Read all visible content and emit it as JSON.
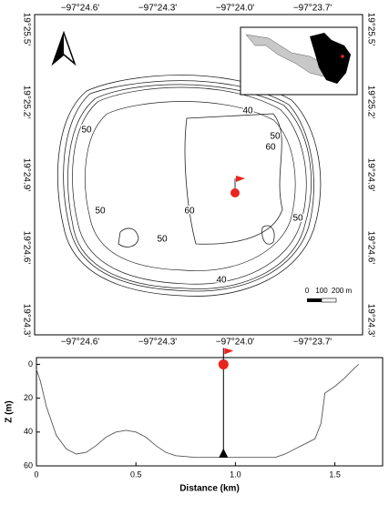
{
  "map": {
    "lon_ticks": [
      "−97°24.6'",
      "−97°24.3'",
      "−97°24.0'",
      "−97°23.7'"
    ],
    "lat_ticks": [
      "19°25.5'",
      "19°25.2'",
      "19°24.9'",
      "19°24.6'",
      "19°24.3'"
    ],
    "contour_labels": [
      "40",
      "50",
      "50",
      "60",
      "50",
      "60",
      "50",
      "50",
      "40"
    ],
    "scale_bar": [
      "0",
      "100",
      "200 m"
    ]
  },
  "chart_data": {
    "type": "line",
    "ylabel": "Z (m)",
    "xlabel": "Distance (km)",
    "x": [
      0,
      0.02,
      0.05,
      0.1,
      0.15,
      0.2,
      0.25,
      0.3,
      0.35,
      0.4,
      0.45,
      0.5,
      0.55,
      0.6,
      0.65,
      0.7,
      0.8,
      0.94,
      1.0,
      1.1,
      1.2,
      1.25,
      1.3,
      1.35,
      1.4,
      1.43,
      1.45,
      1.5,
      1.55,
      1.6,
      1.62
    ],
    "series": [
      {
        "color": "#555555",
        "values": [
          3,
          10,
          25,
          42,
          50,
          53,
          52,
          48,
          43,
          40,
          39,
          40,
          43,
          48,
          52,
          54,
          55,
          55,
          55,
          55,
          55,
          53,
          50,
          47,
          44,
          35,
          17,
          13,
          8,
          2,
          0
        ]
      }
    ],
    "station_x": 0.94,
    "station_depth": 55,
    "xlim": [
      0,
      1.74
    ],
    "ylim": [
      -4,
      60
    ],
    "y_inverted": true,
    "xticks": [
      0,
      0.5,
      {
        "value": 1,
        "label": "1.0"
      },
      1.5
    ],
    "yticks": [
      0,
      20,
      40,
      60
    ]
  }
}
